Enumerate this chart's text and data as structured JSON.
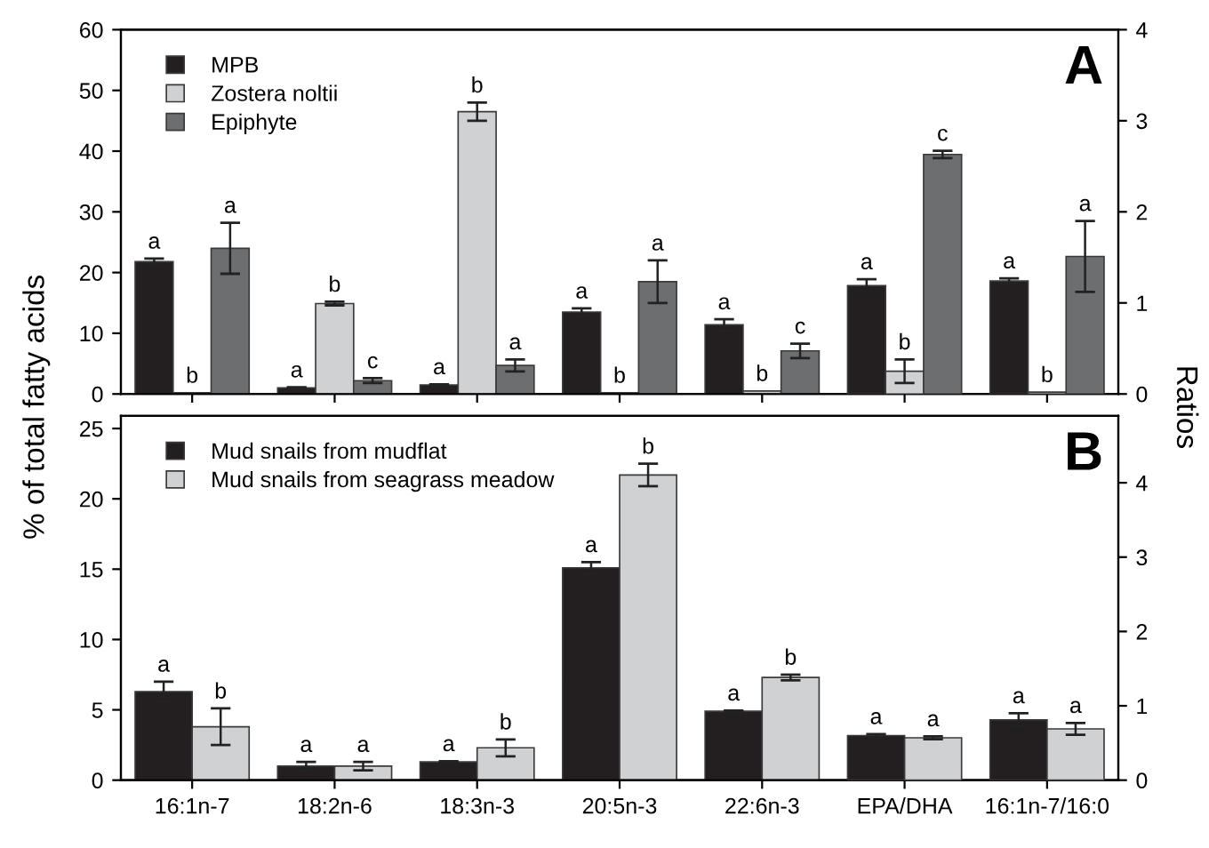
{
  "chart_data": [
    {
      "type": "bar",
      "title": "A",
      "ylabel": "% of total fatty acids",
      "y2label": "Ratios",
      "categories": [
        null,
        null,
        null,
        null,
        null,
        null,
        null
      ],
      "ylim": [
        0,
        60
      ],
      "yticks": [
        0,
        10,
        20,
        30,
        40,
        50,
        60
      ],
      "y2lim": [
        0,
        4
      ],
      "y2ticks": [
        0,
        1,
        2,
        3,
        4
      ],
      "tick_labels": "y",
      "grid": false,
      "legend": "top left",
      "series": [
        {
          "name": "MPB",
          "color": "#231f20",
          "values": [
            21.8,
            1.0,
            1.5,
            13.5,
            11.4,
            null,
            null
          ],
          "errors": [
            0.5,
            0.1,
            0.1,
            0.6,
            0.9,
            null,
            null
          ],
          "value_labels": [
            "a",
            "a",
            "a",
            "a",
            "a",
            null,
            null
          ]
        },
        {
          "name": "Zostera noltii",
          "color": "#d0d1d3",
          "values": [
            0.2,
            14.9,
            46.5,
            0.2,
            0.5,
            null,
            null
          ],
          "errors": [
            null,
            0.3,
            1.5,
            null,
            null,
            null,
            null
          ],
          "value_labels": [
            "b",
            "b",
            "b",
            "b",
            "b",
            null,
            null
          ]
        },
        {
          "name": "Epiphyte",
          "color": "#6d6e70",
          "values": [
            24.0,
            2.2,
            4.7,
            18.5,
            7.1,
            null,
            null
          ],
          "errors": [
            4.2,
            0.4,
            1.0,
            3.5,
            1.2,
            null,
            null
          ],
          "value_labels": [
            "a",
            "c",
            "a",
            "a",
            "c",
            null,
            null
          ]
        },
        {
          "color": "#231f20",
          "axis": "y2",
          "values": [
            null,
            null,
            null,
            null,
            null,
            1.19,
            1.24
          ],
          "errors": [
            null,
            null,
            null,
            null,
            null,
            0.07,
            0.03
          ],
          "value_labels": [
            null,
            null,
            null,
            null,
            null,
            "a",
            "a"
          ]
        },
        {
          "color": "#d0d1d3",
          "axis": "y2",
          "values": [
            null,
            null,
            null,
            null,
            null,
            0.25,
            0.02
          ],
          "errors": [
            null,
            null,
            null,
            null,
            null,
            0.13,
            null
          ],
          "value_labels": [
            null,
            null,
            null,
            null,
            null,
            "b",
            "b"
          ]
        },
        {
          "color": "#6d6e70",
          "axis": "y2",
          "values": [
            null,
            null,
            null,
            null,
            null,
            2.63,
            1.51
          ],
          "errors": [
            null,
            null,
            null,
            null,
            null,
            0.04,
            0.39
          ],
          "value_labels": [
            null,
            null,
            null,
            null,
            null,
            "c",
            "a"
          ]
        }
      ]
    },
    {
      "type": "bar",
      "title": "B",
      "categories": [
        "16:1n-7",
        "18:2n-6",
        "18:3n-3",
        "20:5n-3",
        "22:6n-3",
        "EPA/DHA",
        "16:1n-7/16:0"
      ],
      "ylim": [
        0,
        25.9
      ],
      "yticks": [
        0,
        5,
        10,
        15,
        20,
        25
      ],
      "y2lim": [
        0,
        4.9
      ],
      "y2ticks": [
        0,
        1,
        2,
        3,
        4
      ],
      "grid": false,
      "legend": "top left",
      "series": [
        {
          "name": "Mud snails from mudflat",
          "color": "#231f20",
          "values": [
            6.3,
            1.0,
            1.3,
            15.1,
            4.9,
            null,
            null
          ],
          "errors": [
            0.7,
            0.3,
            0.05,
            0.4,
            0.05,
            null,
            null
          ],
          "value_labels": [
            "a",
            "a",
            "a",
            "a",
            "a",
            null,
            null
          ]
        },
        {
          "name": "Mud snails from seagrass meadow",
          "color": "#d0d1d3",
          "values": [
            3.8,
            1.0,
            2.3,
            21.7,
            7.3,
            null,
            null
          ],
          "errors": [
            1.3,
            0.3,
            0.6,
            0.8,
            0.2,
            null,
            null
          ],
          "value_labels": [
            "b",
            "a",
            "b",
            "b",
            "b",
            null,
            null
          ]
        },
        {
          "color": "#231f20",
          "axis": "y2",
          "values": [
            null,
            null,
            null,
            null,
            null,
            0.6,
            0.81
          ],
          "errors": [
            null,
            null,
            null,
            null,
            null,
            0.02,
            0.09
          ],
          "value_labels": [
            null,
            null,
            null,
            null,
            null,
            "a",
            "a"
          ]
        },
        {
          "color": "#d0d1d3",
          "axis": "y2",
          "values": [
            null,
            null,
            null,
            null,
            null,
            0.57,
            0.69
          ],
          "errors": [
            null,
            null,
            null,
            null,
            null,
            0.02,
            0.08
          ],
          "value_labels": [
            null,
            null,
            null,
            null,
            null,
            "a",
            "a"
          ]
        }
      ]
    }
  ]
}
